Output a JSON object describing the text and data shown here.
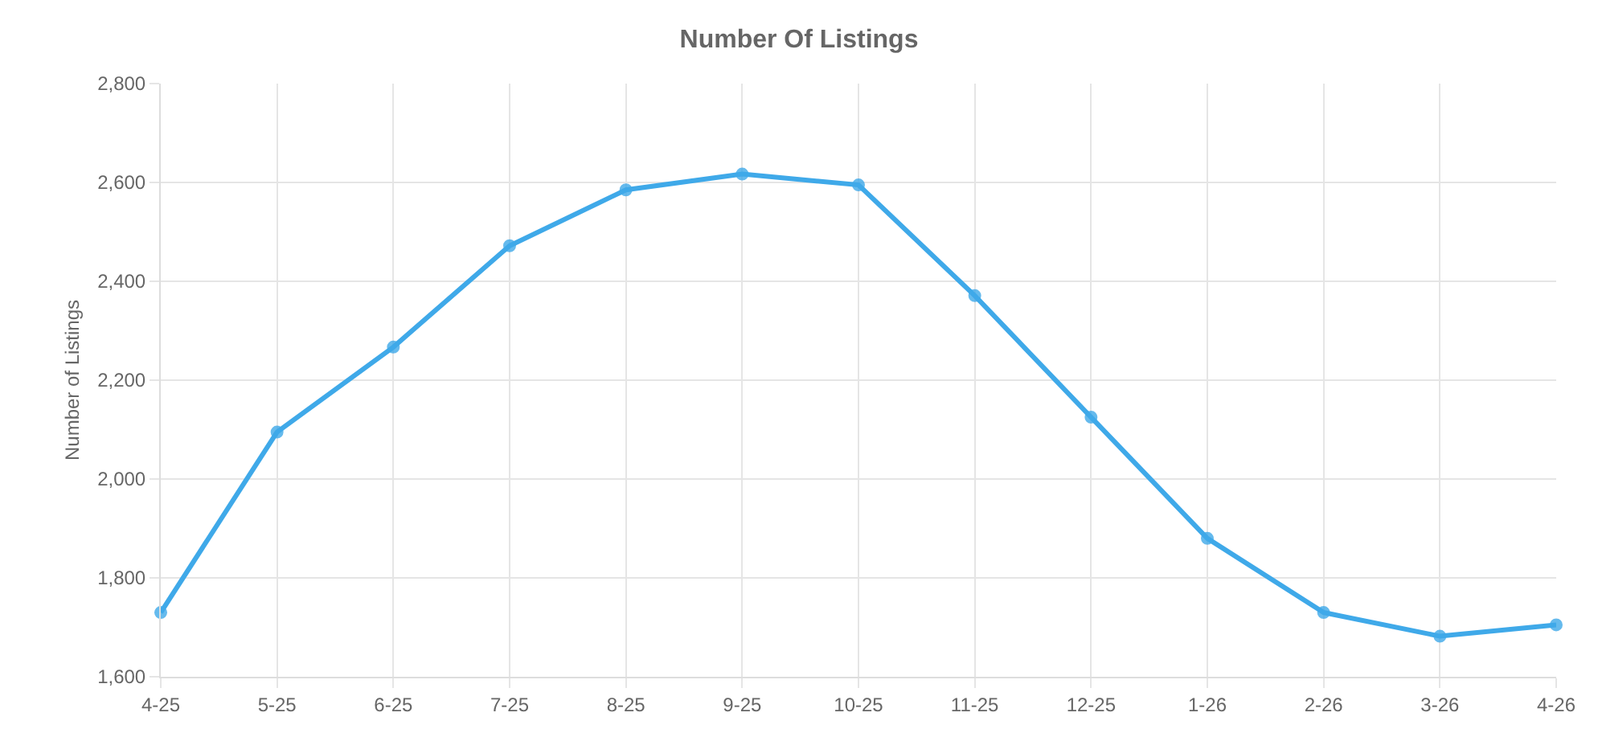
{
  "chart_data": {
    "type": "line",
    "title": "Number Of Listings",
    "ylabel": "Number of Listings",
    "categories": [
      "4-25",
      "5-25",
      "6-25",
      "7-25",
      "8-25",
      "9-25",
      "10-25",
      "11-25",
      "12-25",
      "1-26",
      "2-26",
      "3-26",
      "4-26"
    ],
    "series": [
      {
        "color": "#3fa9e9",
        "values": [
          1730,
          2095,
          2267,
          2472,
          2585,
          2617,
          2595,
          2371,
          2125,
          1880,
          1730,
          1682,
          1705
        ]
      }
    ],
    "ylim": [
      1600,
      2800
    ],
    "yticks": [
      {
        "value": 1600,
        "label": "1,600"
      },
      {
        "value": 1800,
        "label": "1,800"
      },
      {
        "value": 2000,
        "label": "2,000"
      },
      {
        "value": 2200,
        "label": "2,200"
      },
      {
        "value": 2400,
        "label": "2,400"
      },
      {
        "value": 2600,
        "label": "2,600"
      },
      {
        "value": 2800,
        "label": "2,800"
      }
    ],
    "grid": true,
    "marker": "circle",
    "line_style": "solid"
  }
}
